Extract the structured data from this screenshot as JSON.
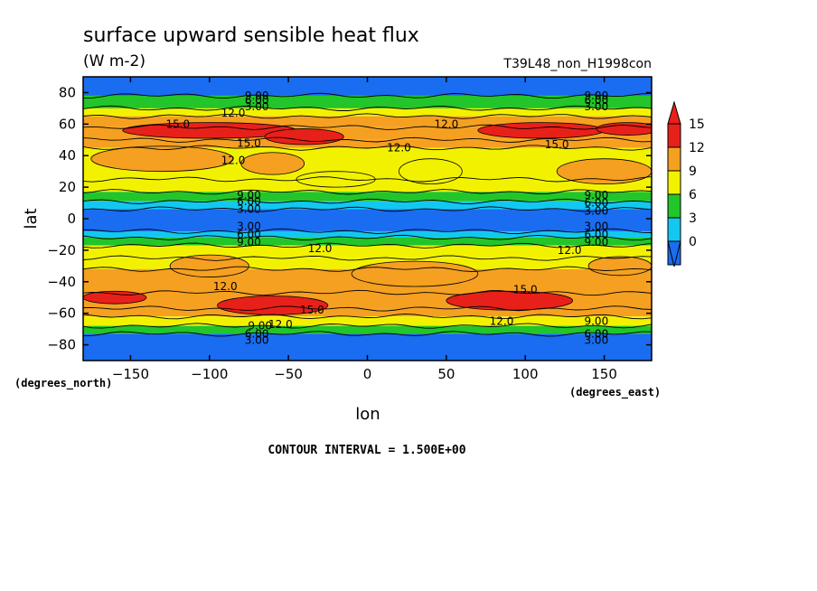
{
  "chart_data": {
    "type": "heatmap",
    "title": "surface upward sensible heat flux",
    "subtitle": "(W m-2)",
    "run_label": "T39L48_non_H1998con",
    "xlabel": "lon",
    "ylabel": "lat",
    "x_units": "(degrees_east)",
    "y_units": "(degrees_north)",
    "xlim": [
      -180,
      180
    ],
    "ylim": [
      -90,
      90
    ],
    "x_ticks": [
      -150,
      -100,
      -50,
      0,
      50,
      100,
      150
    ],
    "x_tick_labels": [
      "−150",
      "−100",
      "−50",
      "0",
      "50",
      "100",
      "150"
    ],
    "y_ticks": [
      80,
      60,
      40,
      20,
      0,
      -20,
      -40,
      -60,
      -80
    ],
    "y_tick_labels": [
      "80",
      "60",
      "40",
      "20",
      "0",
      "−20",
      "−40",
      "−60",
      "−80"
    ],
    "contour_interval_text": "CONTOUR INTERVAL = 1.500E+00",
    "colorbar": {
      "levels": [
        0,
        3,
        6,
        9,
        12,
        15
      ],
      "labels": [
        "0",
        "3",
        "6",
        "9",
        "12",
        "15"
      ],
      "colors": [
        "#1a6cf0",
        "#13c8f0",
        "#22c52a",
        "#f2f200",
        "#f5a020",
        "#e8201a"
      ],
      "extend": "both"
    },
    "latitude_bands": [
      {
        "from": 90,
        "to": 78,
        "value": 1.5
      },
      {
        "from": 78,
        "to": 70,
        "value": 6
      },
      {
        "from": 70,
        "to": 65,
        "value": 10.5
      },
      {
        "from": 65,
        "to": 58,
        "value": 12
      },
      {
        "from": 58,
        "to": 50,
        "value": 13.5
      },
      {
        "from": 50,
        "to": 45,
        "value": 12
      },
      {
        "from": 45,
        "to": 25,
        "value": 10.5
      },
      {
        "from": 25,
        "to": 17,
        "value": 9.5
      },
      {
        "from": 17,
        "to": 11,
        "value": 7
      },
      {
        "from": 11,
        "to": 6,
        "value": 4.5
      },
      {
        "from": 6,
        "to": -8,
        "value": 1.5
      },
      {
        "from": -8,
        "to": -12,
        "value": 4.5
      },
      {
        "from": -12,
        "to": -17,
        "value": 7.5
      },
      {
        "from": -17,
        "to": -25,
        "value": 10.5
      },
      {
        "from": -25,
        "to": -32,
        "value": 10.5
      },
      {
        "from": -32,
        "to": -47,
        "value": 12
      },
      {
        "from": -47,
        "to": -57,
        "value": 13.5
      },
      {
        "from": -57,
        "to": -62,
        "value": 12
      },
      {
        "from": -62,
        "to": -68,
        "value": 9
      },
      {
        "from": -68,
        "to": -73,
        "value": 6
      },
      {
        "from": -73,
        "to": -90,
        "value": 1.5
      }
    ],
    "regions": [
      {
        "shape": "blob",
        "cx": -100,
        "cy": 56,
        "rx": 55,
        "ry": 5,
        "value": 15
      },
      {
        "shape": "blob",
        "cx": -40,
        "cy": 52,
        "rx": 25,
        "ry": 5,
        "value": 15
      },
      {
        "shape": "blob",
        "cx": 110,
        "cy": 56,
        "rx": 40,
        "ry": 5,
        "value": 15
      },
      {
        "shape": "blob",
        "cx": 165,
        "cy": 57,
        "rx": 20,
        "ry": 4,
        "value": 15
      },
      {
        "shape": "blob",
        "cx": -130,
        "cy": 38,
        "rx": 45,
        "ry": 8,
        "value": 12
      },
      {
        "shape": "blob",
        "cx": -60,
        "cy": 35,
        "rx": 20,
        "ry": 7,
        "value": 12
      },
      {
        "shape": "blob",
        "cx": 150,
        "cy": 30,
        "rx": 30,
        "ry": 8,
        "value": 12
      },
      {
        "shape": "blob",
        "cx": -60,
        "cy": -55,
        "rx": 35,
        "ry": 6,
        "value": 15
      },
      {
        "shape": "blob",
        "cx": 90,
        "cy": -52,
        "rx": 40,
        "ry": 6,
        "value": 15
      },
      {
        "shape": "blob",
        "cx": -160,
        "cy": -50,
        "rx": 20,
        "ry": 4,
        "value": 15
      },
      {
        "shape": "blob",
        "cx": -100,
        "cy": -30,
        "rx": 25,
        "ry": 7,
        "value": 12
      },
      {
        "shape": "blob",
        "cx": 160,
        "cy": -30,
        "rx": 20,
        "ry": 6,
        "value": 12
      },
      {
        "shape": "blob",
        "cx": 30,
        "cy": -35,
        "rx": 40,
        "ry": 8,
        "value": 12
      },
      {
        "shape": "blob",
        "cx": -20,
        "cy": 25,
        "rx": 25,
        "ry": 5,
        "value": 9
      },
      {
        "shape": "blob",
        "cx": 40,
        "cy": 30,
        "rx": 20,
        "ry": 8,
        "value": 9
      }
    ],
    "contour_labels": [
      {
        "text": "9.00",
        "lon": -70,
        "lat": 78
      },
      {
        "text": "6.00",
        "lon": -70,
        "lat": 75
      },
      {
        "text": "3.00",
        "lon": -70,
        "lat": 71
      },
      {
        "text": "12.0",
        "lon": -85,
        "lat": 67
      },
      {
        "text": "15.0",
        "lon": -120,
        "lat": 60
      },
      {
        "text": "12.0",
        "lon": 50,
        "lat": 60
      },
      {
        "text": "12.0",
        "lon": 20,
        "lat": 45
      },
      {
        "text": "15.0",
        "lon": -75,
        "lat": 48
      },
      {
        "text": "12.0",
        "lon": -85,
        "lat": 37
      },
      {
        "text": "15.0",
        "lon": 120,
        "lat": 47
      },
      {
        "text": "9.00",
        "lon": 145,
        "lat": 78
      },
      {
        "text": "6.00",
        "lon": 145,
        "lat": 75
      },
      {
        "text": "3.00",
        "lon": 145,
        "lat": 71
      },
      {
        "text": "9.00",
        "lon": -75,
        "lat": 15
      },
      {
        "text": "6.00",
        "lon": -75,
        "lat": 11
      },
      {
        "text": "3.00",
        "lon": -75,
        "lat": 6
      },
      {
        "text": "9.00",
        "lon": 145,
        "lat": 15
      },
      {
        "text": "6.00",
        "lon": 145,
        "lat": 10
      },
      {
        "text": "3.00",
        "lon": 145,
        "lat": 5
      },
      {
        "text": "3.00",
        "lon": -75,
        "lat": -5
      },
      {
        "text": "6.00",
        "lon": -75,
        "lat": -10
      },
      {
        "text": "9.00",
        "lon": -75,
        "lat": -15
      },
      {
        "text": "12.0",
        "lon": -30,
        "lat": -19
      },
      {
        "text": "3.00",
        "lon": 145,
        "lat": -5
      },
      {
        "text": "6.00",
        "lon": 145,
        "lat": -10
      },
      {
        "text": "9.00",
        "lon": 145,
        "lat": -15
      },
      {
        "text": "12.0",
        "lon": 128,
        "lat": -20
      },
      {
        "text": "12.0",
        "lon": -90,
        "lat": -43
      },
      {
        "text": "15.0",
        "lon": 100,
        "lat": -45
      },
      {
        "text": "15.0",
        "lon": -35,
        "lat": -58
      },
      {
        "text": "12.0",
        "lon": -55,
        "lat": -67
      },
      {
        "text": "9.00",
        "lon": -68,
        "lat": -68
      },
      {
        "text": "12.0",
        "lon": 85,
        "lat": -65
      },
      {
        "text": "9.00",
        "lon": 145,
        "lat": -65
      },
      {
        "text": "6.00",
        "lon": -70,
        "lat": -73
      },
      {
        "text": "3.00",
        "lon": -70,
        "lat": -77
      },
      {
        "text": "6.00",
        "lon": 145,
        "lat": -73
      },
      {
        "text": "3.00",
        "lon": 145,
        "lat": -77
      }
    ]
  }
}
